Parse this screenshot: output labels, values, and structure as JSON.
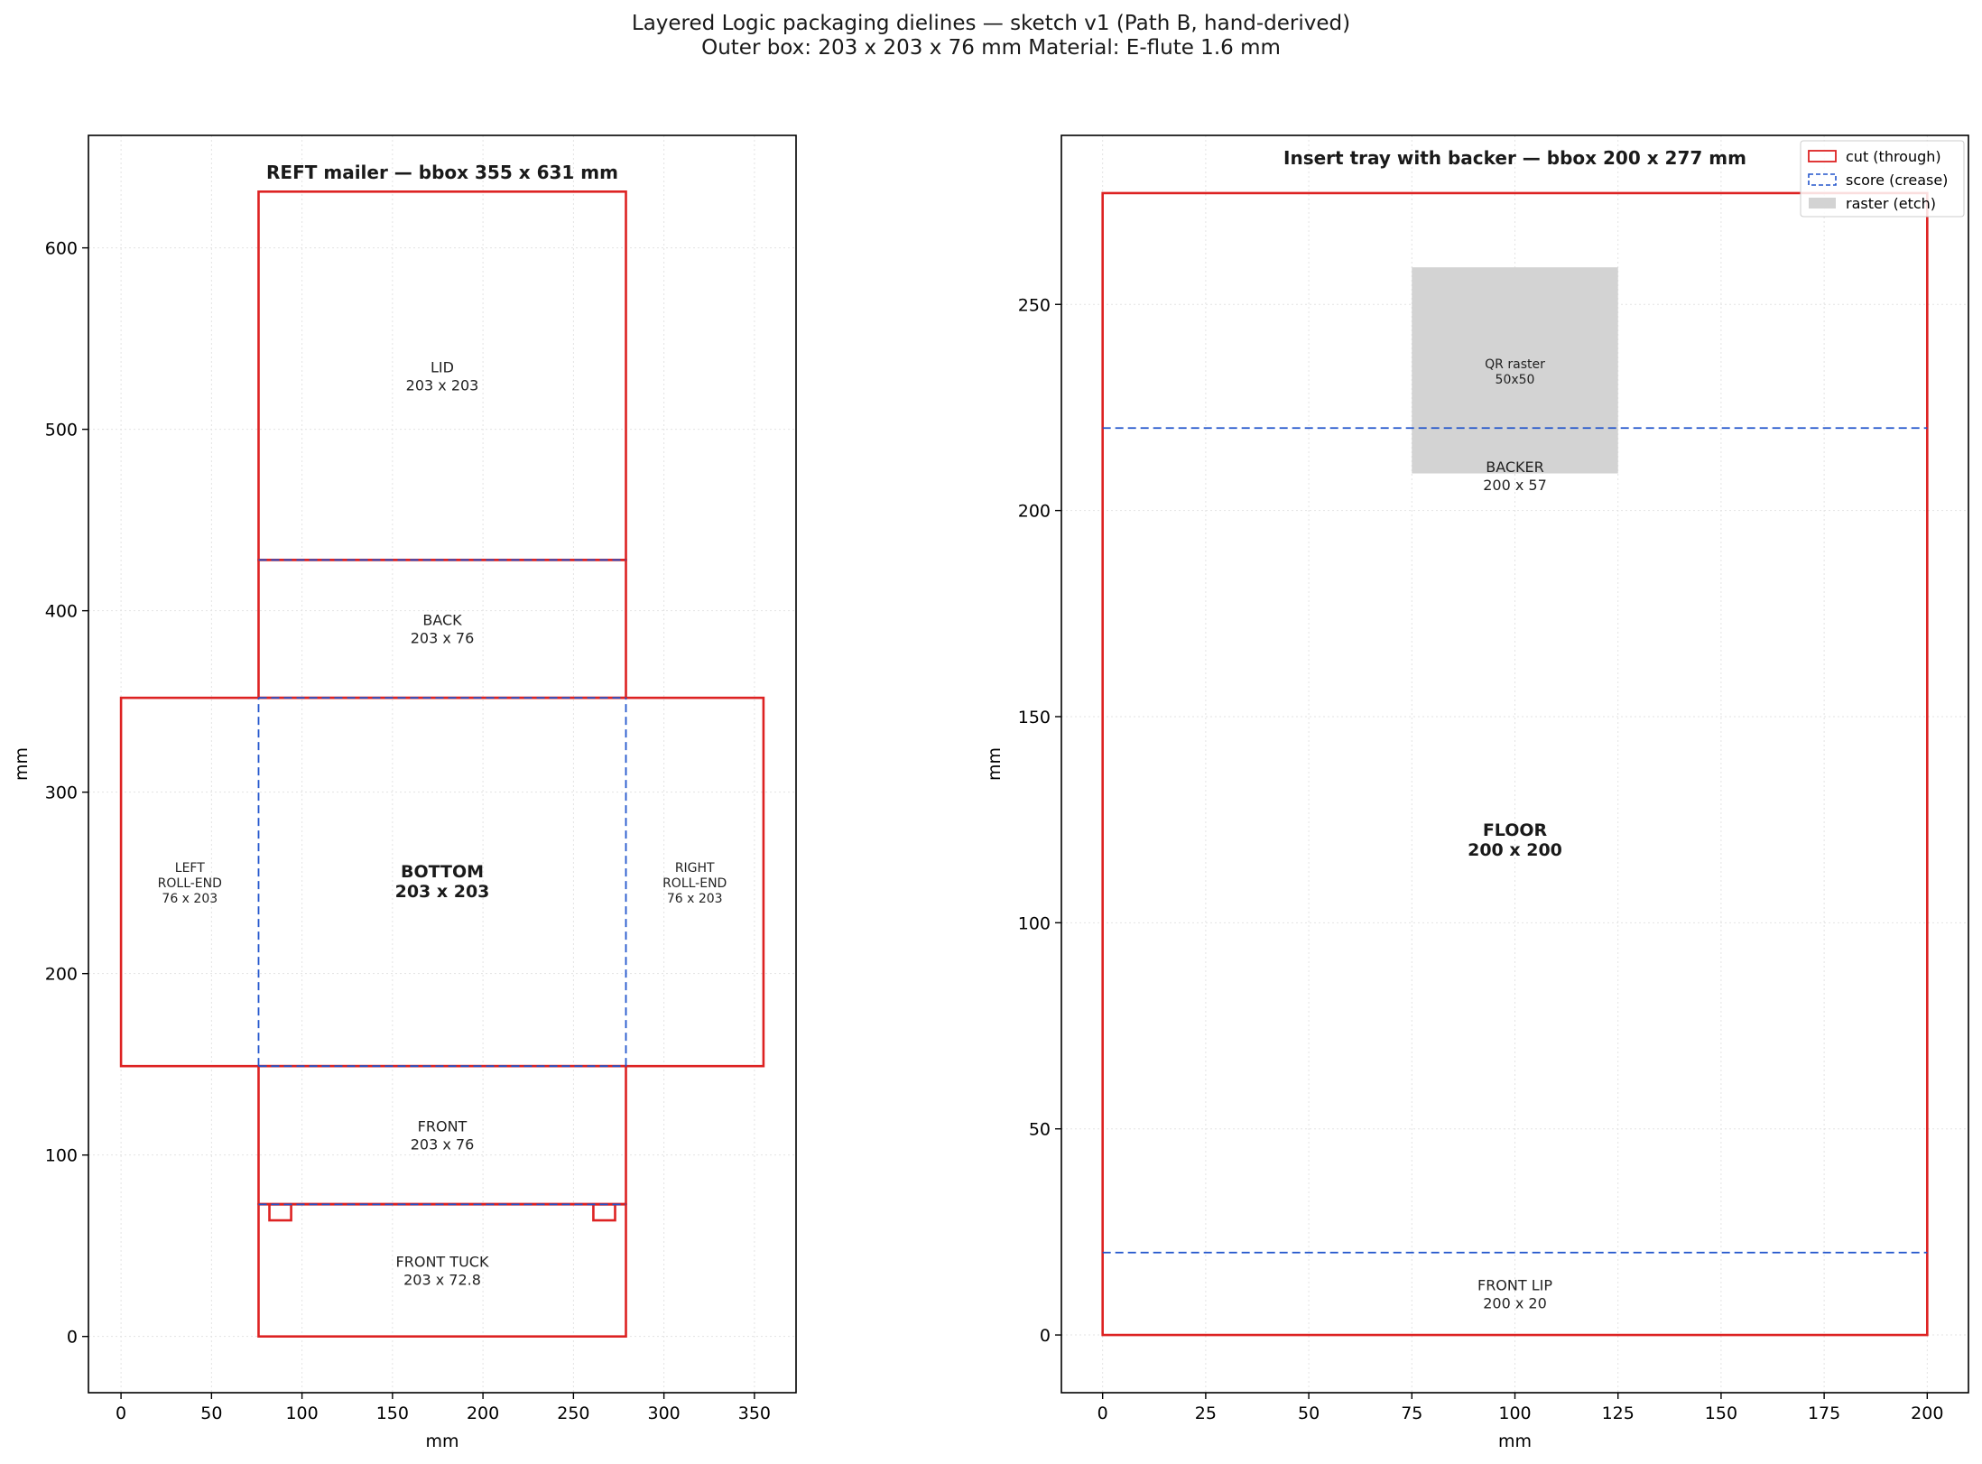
{
  "title_line1": "Layered Logic packaging dielines — sketch v1 (Path B, hand-derived)",
  "title_line2": "Outer box: 203 x 203 x 76 mm   Material: E-flute 1.6 mm",
  "colors": {
    "cut": "#dd2222",
    "score": "#2255cc",
    "raster": "#d3d3d3",
    "grid": "#e3e3e3"
  },
  "legend": [
    {
      "label": "cut (through)",
      "style": "cut"
    },
    {
      "label": "score (crease)",
      "style": "score"
    },
    {
      "label": "raster (etch)",
      "style": "raster"
    }
  ],
  "chart_data": [
    {
      "type": "diagram",
      "title": "REFT mailer — bbox 355 x 631 mm",
      "xlabel": "mm",
      "ylabel": "mm",
      "xlim": [
        -18,
        373
      ],
      "ylim": [
        -31,
        662
      ],
      "xticks": [
        0,
        50,
        100,
        150,
        200,
        250,
        300,
        350
      ],
      "yticks": [
        0,
        100,
        200,
        300,
        400,
        500,
        600
      ],
      "grid": true,
      "cut_rects": [
        {
          "x": 76,
          "y": 428,
          "w": 203,
          "h": 203
        },
        {
          "x": 76,
          "y": 352,
          "w": 203,
          "h": 76
        },
        {
          "x": 0,
          "y": 149,
          "w": 355,
          "h": 203
        },
        {
          "x": 76,
          "y": 73,
          "w": 203,
          "h": 76
        },
        {
          "x": 76,
          "y": 0,
          "w": 203,
          "h": 72.8
        }
      ],
      "tabs": [
        {
          "x": 82,
          "y": 64,
          "w": 12,
          "h": 8.8
        },
        {
          "x": 261,
          "y": 64,
          "w": 12,
          "h": 8.8
        }
      ],
      "score_lines": [
        {
          "x1": 76,
          "y1": 428,
          "x2": 279,
          "y2": 428
        },
        {
          "x1": 76,
          "y1": 352,
          "x2": 279,
          "y2": 352
        },
        {
          "x1": 76,
          "y1": 149,
          "x2": 279,
          "y2": 149
        },
        {
          "x1": 76,
          "y1": 72.8,
          "x2": 279,
          "y2": 72.8
        },
        {
          "x1": 76,
          "y1": 149,
          "x2": 76,
          "y2": 352
        },
        {
          "x1": 279,
          "y1": 149,
          "x2": 279,
          "y2": 352
        }
      ],
      "labels": [
        {
          "lines": [
            "LID",
            "203 x 203"
          ],
          "x": 177.5,
          "y": 529.5,
          "bold": false
        },
        {
          "lines": [
            "BACK",
            "203 x 76"
          ],
          "x": 177.5,
          "y": 390,
          "bold": false
        },
        {
          "lines": [
            "LEFT",
            "ROLL-END",
            "76 x 203"
          ],
          "x": 38,
          "y": 250.5,
          "bold": false,
          "small": true
        },
        {
          "lines": [
            "BOTTOM",
            "203 x 203"
          ],
          "x": 177.5,
          "y": 250.5,
          "bold": true
        },
        {
          "lines": [
            "RIGHT",
            "ROLL-END",
            "76 x 203"
          ],
          "x": 317,
          "y": 250.5,
          "bold": false,
          "small": true
        },
        {
          "lines": [
            "FRONT",
            "203 x 76"
          ],
          "x": 177.5,
          "y": 111,
          "bold": false
        },
        {
          "lines": [
            "FRONT TUCK",
            "203 x 72.8"
          ],
          "x": 177.5,
          "y": 36.4,
          "bold": false
        }
      ]
    },
    {
      "type": "diagram",
      "title": "Insert tray with backer — bbox 200 x 277 mm",
      "xlabel": "mm",
      "ylabel": "mm",
      "xlim": [
        -10,
        210
      ],
      "ylim": [
        -14,
        291
      ],
      "xticks": [
        0,
        25,
        50,
        75,
        100,
        125,
        150,
        175,
        200
      ],
      "yticks": [
        0,
        50,
        100,
        150,
        200,
        250
      ],
      "grid": true,
      "raster_rects": [
        {
          "x": 75,
          "y": 209,
          "w": 50,
          "h": 50
        }
      ],
      "cut_rects": [
        {
          "x": 0,
          "y": 0,
          "w": 200,
          "h": 277
        }
      ],
      "tabs": [],
      "score_lines": [
        {
          "x1": 0,
          "y1": 220,
          "x2": 200,
          "y2": 220
        },
        {
          "x1": 0,
          "y1": 20,
          "x2": 200,
          "y2": 20
        }
      ],
      "labels": [
        {
          "lines": [
            "QR raster",
            "50x50"
          ],
          "x": 100,
          "y": 234,
          "bold": false,
          "small": true
        },
        {
          "lines": [
            "BACKER",
            "200 x 57"
          ],
          "x": 100,
          "y": 208.5,
          "bold": false
        },
        {
          "lines": [
            "FLOOR",
            "200 x 200"
          ],
          "x": 100,
          "y": 120,
          "bold": true
        },
        {
          "lines": [
            "FRONT LIP",
            "200 x 20"
          ],
          "x": 100,
          "y": 10,
          "bold": false
        }
      ]
    }
  ]
}
